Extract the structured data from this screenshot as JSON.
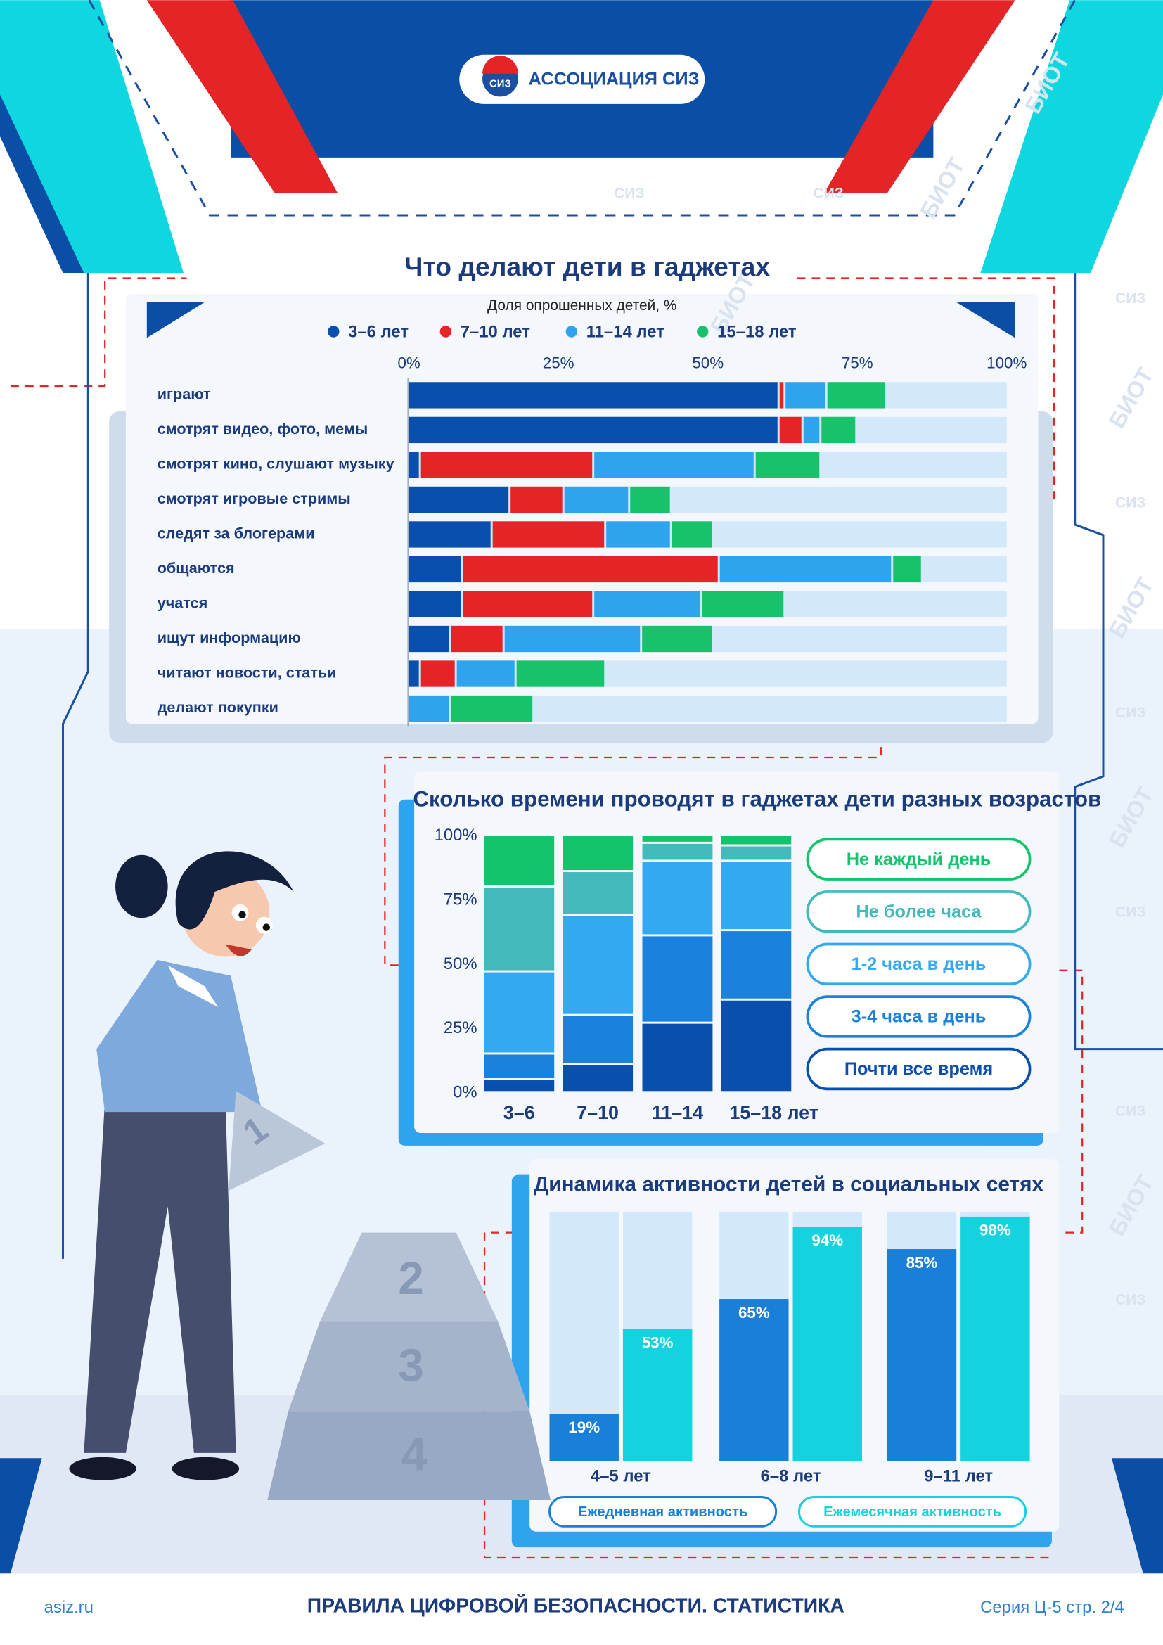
{
  "header": {
    "logo": "АССОЦИАЦИЯ СИЗ",
    "logo_mark": "СИЗ"
  },
  "chart_data": [
    {
      "type": "bar",
      "orientation": "horizontal",
      "stacked": true,
      "title": "Что делают дети в гаджетах",
      "subtitle": "Доля опрошенных детей, %",
      "categories": [
        "играют",
        "смотрят видео, фото, мемы",
        "смотрят кино, слушают музыку",
        "смотрят игровые стримы",
        "следят за блогерами",
        "общаются",
        "учатся",
        "ищут информацию",
        "читают новости, статьи",
        "делают покупки"
      ],
      "series": [
        {
          "name": "3–6 лет",
          "color": "#0b4fae",
          "values": [
            62,
            62,
            2,
            17,
            14,
            9,
            9,
            7,
            2,
            0
          ]
        },
        {
          "name": "7–10 лет",
          "color": "#e52427",
          "values": [
            1,
            4,
            29,
            9,
            19,
            43,
            22,
            9,
            6,
            0
          ]
        },
        {
          "name": "11–14 лет",
          "color": "#2fa3ee",
          "values": [
            7,
            3,
            27,
            11,
            11,
            29,
            18,
            23,
            10,
            7
          ]
        },
        {
          "name": "15–18 лет",
          "color": "#17c26b",
          "values": [
            10,
            6,
            11,
            7,
            7,
            5,
            14,
            12,
            15,
            14
          ]
        }
      ],
      "xlim": [
        0,
        100
      ],
      "xticks": [
        {
          "value": 0,
          "label": "0%"
        },
        {
          "value": 25,
          "label": "25%"
        },
        {
          "value": 50,
          "label": "50%"
        },
        {
          "value": 75,
          "label": "75%"
        },
        {
          "value": 100,
          "label": "100%"
        }
      ],
      "track_color": "#d3e9fb"
    },
    {
      "type": "bar",
      "orientation": "vertical",
      "stacked": true,
      "title": "Сколько времени проводят в гаджетах дети разных возрастов",
      "categories": [
        "3–6",
        "7–10",
        "11–14",
        "15–18 лет"
      ],
      "series": [
        {
          "name": "Почти все время",
          "color": "#0a4fae",
          "values": [
            5,
            11,
            27,
            36
          ]
        },
        {
          "name": "3-4 часа в день",
          "color": "#1a82dc",
          "values": [
            10,
            19,
            34,
            27
          ]
        },
        {
          "name": "1-2 часа в день",
          "color": "#34a9f2",
          "values": [
            32,
            39,
            29,
            27
          ]
        },
        {
          "name": "Не более часа",
          "color": "#43b9bb",
          "values": [
            33,
            17,
            7,
            6
          ]
        },
        {
          "name": "Не каждый день",
          "color": "#14c46d",
          "values": [
            20,
            14,
            3,
            4
          ]
        }
      ],
      "ylim": [
        0,
        100
      ],
      "yticks": [
        {
          "value": 0,
          "label": "0%"
        },
        {
          "value": 25,
          "label": "25%"
        },
        {
          "value": 50,
          "label": "50%"
        },
        {
          "value": 75,
          "label": "75%"
        },
        {
          "value": 100,
          "label": "100%"
        }
      ]
    },
    {
      "type": "bar",
      "orientation": "vertical",
      "stacked": false,
      "title": "Динамика активности детей в социальных сетях",
      "categories": [
        "4–5 лет",
        "6–8 лет",
        "9–11 лет"
      ],
      "series": [
        {
          "name": "Ежедневная активность",
          "color": "#1a7fd8",
          "values": [
            19,
            65,
            85
          ],
          "value_labels": [
            "19%",
            "65%",
            "85%"
          ]
        },
        {
          "name": "Ежемесячная активность",
          "color": "#14d3de",
          "values": [
            53,
            94,
            98
          ],
          "value_labels": [
            "53%",
            "94%",
            "98%"
          ]
        }
      ],
      "ylim": [
        0,
        100
      ],
      "track_color": "#d3e9fb"
    }
  ],
  "illustration": {
    "steps": [
      "1",
      "2",
      "3",
      "4"
    ]
  },
  "watermark": [
    "БИОТ",
    "СИЗ"
  ],
  "footer": {
    "site": "asiz.ru",
    "title": "ПРАВИЛА ЦИФРОВОЙ БЕЗОПАСНОСТИ. СТАТИСТИКА",
    "series": "Серия Ц-5 стр. 2/4"
  }
}
